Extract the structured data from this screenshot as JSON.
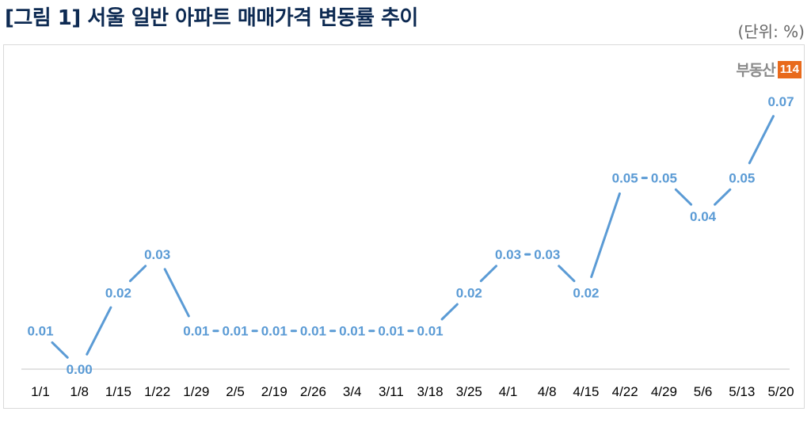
{
  "title": "[그림 1] 서울 일반 아파트 매매가격 변동률 추이",
  "unit_label": "(단위: %)",
  "logo": {
    "text": "부동산",
    "badge": "114",
    "badge_color": "#e86a1c"
  },
  "colors": {
    "line": "#5b9bd5",
    "title": "#0d2a52",
    "axis": "#d9d9d9"
  },
  "chart_data": {
    "type": "line",
    "title": "[그림 1] 서울 일반 아파트 매매가격 변동률 추이",
    "xlabel": "",
    "ylabel": "",
    "unit": "%",
    "categories": [
      "1/1",
      "1/8",
      "1/15",
      "1/22",
      "1/29",
      "2/5",
      "2/19",
      "2/26",
      "3/4",
      "3/11",
      "3/18",
      "3/25",
      "4/1",
      "4/8",
      "4/15",
      "4/22",
      "4/29",
      "5/6",
      "5/13",
      "5/20"
    ],
    "series": [
      {
        "name": "서울 일반 아파트 매매가격 변동률",
        "values": [
          0.01,
          0.0,
          0.02,
          0.03,
          0.01,
          0.01,
          0.01,
          0.01,
          0.01,
          0.01,
          0.01,
          0.02,
          0.03,
          0.03,
          0.02,
          0.05,
          0.05,
          0.04,
          0.05,
          0.07
        ],
        "labels": [
          "0.01",
          "0.00",
          "0.02",
          "0.03",
          "0.01",
          "0.01",
          "0.01",
          "0.01",
          "0.01",
          "0.01",
          "0.01",
          "0.02",
          "0.03",
          "0.03",
          "0.02",
          "0.05",
          "0.05",
          "0.04",
          "0.05",
          "0.07"
        ]
      }
    ],
    "ylim": [
      0,
      0.07
    ],
    "grid": false,
    "legend": "none",
    "data_labels": true
  }
}
